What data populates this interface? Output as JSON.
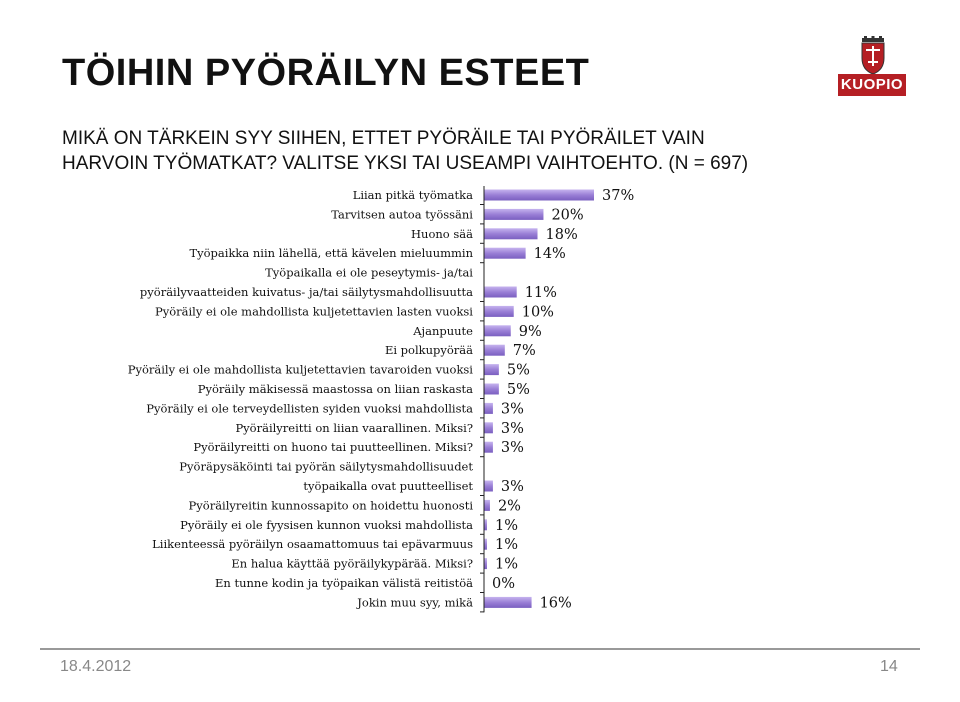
{
  "slide": {
    "title": "TÖIHIN PYÖRÄILYN ESTEET",
    "subtitle": "MIKÄ ON TÄRKEIN SYY SIIHEN, ETTET PYÖRÄILE TAI PYÖRÄILET VAIN HARVOIN TYÖMATKAT? VALITSE YKSI TAI USEAMPI VAIHTOEHTO. (N = 697)",
    "logo_text": "KUOPIO",
    "date": "18.4.2012",
    "page_number": "14"
  },
  "colors": {
    "bar_fill": "#9a7fd6",
    "bar_highlight": "#c6b4ef",
    "logo_red": "#b51f24"
  },
  "chart_data": {
    "type": "bar",
    "orientation": "horizontal",
    "title": "",
    "xlabel": "",
    "ylabel": "",
    "xlim": [
      0,
      37
    ],
    "grid": false,
    "legend": "none",
    "categories": [
      "Liian pitkä työmatka",
      "Tarvitsen autoa työssäni",
      "Huono sää",
      "Työpaikka niin lähellä, että kävelen mieluummin",
      "Työpaikalla ei ole peseytymis- ja/tai pyöräilyvaatteiden kuivatus- ja/tai säilytysmahdollisuutta",
      "Pyöräily ei ole mahdollista kuljetettavien lasten vuoksi",
      "Ajanpuute",
      "Ei polkupyörää",
      "Pyöräily ei ole mahdollista kuljetettavien tavaroiden vuoksi",
      "Pyöräily mäkisessä maastossa on liian raskasta",
      "Pyöräily ei ole terveydellisten syiden vuoksi mahdollista",
      "Pyöräilyreitti on liian vaarallinen. Miksi?",
      "Pyöräilyreitti on huono tai puutteellinen. Miksi?",
      "Pyöräpysäköinti tai pyörän säilytysmahdollisuudet työpaikalla ovat puutteelliset",
      "Pyöräilyreitin kunnossapito on hoidettu huonosti",
      "Pyöräily ei ole fyysisen kunnon vuoksi mahdollista",
      "Liikenteessä pyöräilyn osaamattomuus tai epävarmuus",
      "En halua käyttää pyöräilykypärää. Miksi?",
      "En tunne kodin ja työpaikan välistä reitistöä",
      "Jokin muu syy, mikä"
    ],
    "label_lines": [
      [
        "Liian pitkä työmatka"
      ],
      [
        "Tarvitsen autoa työssäni"
      ],
      [
        "Huono sää"
      ],
      [
        "Työpaikka niin lähellä, että kävelen mieluummin"
      ],
      [
        "Työpaikalla ei ole peseytymis- ja/tai",
        "pyöräilyvaatteiden kuivatus- ja/tai säilytysmahdollisuutta"
      ],
      [
        "Pyöräily ei ole mahdollista kuljetettavien lasten vuoksi"
      ],
      [
        "Ajanpuute"
      ],
      [
        "Ei polkupyörää"
      ],
      [
        "Pyöräily ei ole mahdollista kuljetettavien tavaroiden vuoksi"
      ],
      [
        "Pyöräily mäkisessä maastossa on liian raskasta"
      ],
      [
        "Pyöräily ei ole terveydellisten syiden vuoksi mahdollista"
      ],
      [
        "Pyöräilyreitti on liian vaarallinen. Miksi?"
      ],
      [
        "Pyöräilyreitti on huono tai puutteellinen. Miksi?"
      ],
      [
        "Pyöräpysäköinti tai pyörän säilytysmahdollisuudet",
        "työpaikalla ovat puutteelliset"
      ],
      [
        "Pyöräilyreitin kunnossapito on hoidettu huonosti"
      ],
      [
        "Pyöräily ei ole fyysisen kunnon vuoksi mahdollista"
      ],
      [
        "Liikenteessä pyöräilyn osaamattomuus tai epävarmuus"
      ],
      [
        "En halua käyttää pyöräilykypärää. Miksi?"
      ],
      [
        "En tunne kodin ja työpaikan välistä reitistöä"
      ],
      [
        "Jokin muu syy, mikä"
      ]
    ],
    "values": [
      37,
      20,
      18,
      14,
      11,
      10,
      9,
      7,
      5,
      5,
      3,
      3,
      3,
      3,
      2,
      1,
      1,
      1,
      0,
      16
    ],
    "value_labels": [
      "37%",
      "20%",
      "18%",
      "14%",
      "11%",
      "10%",
      "9%",
      "7%",
      "5%",
      "5%",
      "3%",
      "3%",
      "3%",
      "3%",
      "2%",
      "1%",
      "1%",
      "1%",
      "0%",
      "16%"
    ]
  }
}
